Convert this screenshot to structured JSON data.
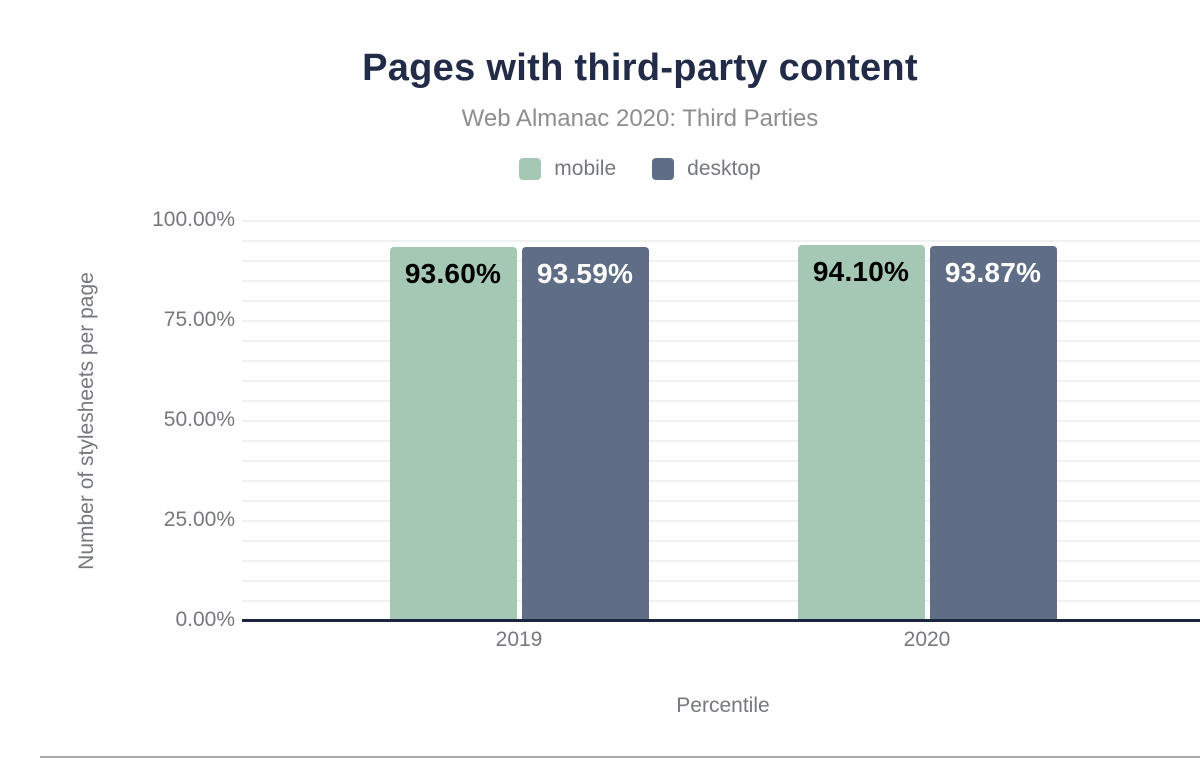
{
  "chart_data": {
    "type": "bar",
    "title": "Pages with third-party content",
    "subtitle": "Web Almanac 2020: Third Parties",
    "xlabel": "Percentile",
    "ylabel": "Number of stylesheets per page",
    "categories": [
      "2019",
      "2020"
    ],
    "series": [
      {
        "name": "mobile",
        "color": "#a5c8b4",
        "values": [
          93.6,
          94.1
        ],
        "data_labels": [
          "93.60%",
          "94.10%"
        ],
        "data_label_color": "#000000"
      },
      {
        "name": "desktop",
        "color": "#5f6e86",
        "values": [
          93.59,
          93.87
        ],
        "data_labels": [
          "93.59%",
          "93.87%"
        ],
        "data_label_color": "#ffffff"
      }
    ],
    "ylim": [
      0,
      100
    ],
    "y_ticks": [
      {
        "value": 100,
        "label": "100.00%"
      },
      {
        "value": 75,
        "label": "75.00%"
      },
      {
        "value": 50,
        "label": "50.00%"
      },
      {
        "value": 25,
        "label": "25.00%"
      },
      {
        "value": 0,
        "label": "0.00%"
      }
    ],
    "grid": {
      "on": true,
      "minor_step": 5,
      "color": "#f1f1f1"
    },
    "legend_position": "top",
    "bar_corner_radius": 4,
    "colors": {
      "title": "#222c49",
      "subtitle": "#8e8e8e",
      "axis_text": "#75787d",
      "axis_line": "#1b2541"
    }
  }
}
